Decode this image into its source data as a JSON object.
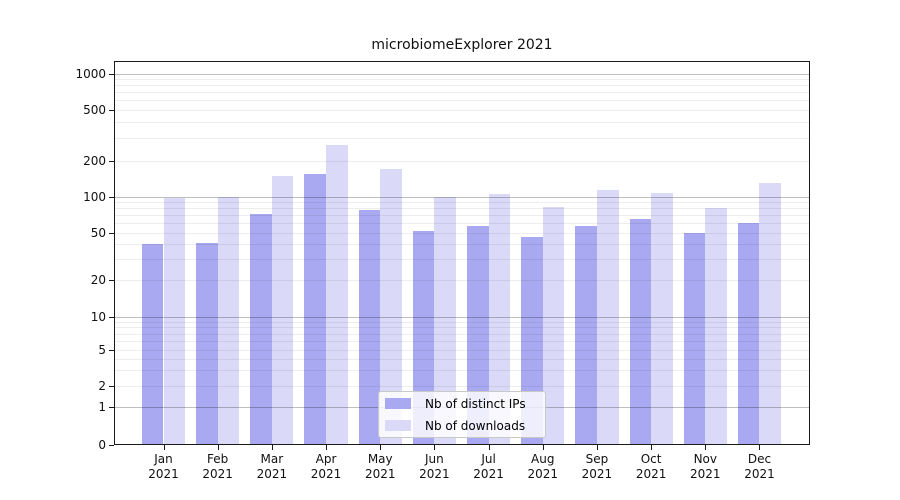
{
  "title": "microbiomeExplorer 2021",
  "colors": {
    "distinct_ips_bar": "#a9a9f2",
    "downloads_bar": "#dadaf8",
    "grid_major": "rgba(0,0,0,0.25)",
    "grid_minor": "rgba(0,0,0,0.07)",
    "axis": "#1a1a1a"
  },
  "chart_data": {
    "type": "bar",
    "title": "microbiomeExplorer 2021",
    "x_month_labels": [
      "Jan",
      "Feb",
      "Mar",
      "Apr",
      "May",
      "Jun",
      "Jul",
      "Aug",
      "Sep",
      "Oct",
      "Nov",
      "Dec"
    ],
    "x_year_label": "2021",
    "series": [
      {
        "name": "Nb of distinct IPs",
        "color": "#a9a9f2",
        "values": [
          40,
          41,
          71,
          155,
          77,
          51,
          57,
          46,
          57,
          65,
          50,
          60
        ]
      },
      {
        "name": "Nb of downloads",
        "color": "#dadaf8",
        "values": [
          97,
          99,
          148,
          265,
          170,
          99,
          105,
          82,
          113,
          108,
          80,
          129
        ]
      }
    ],
    "yscale": "symlog",
    "yticks": [
      0,
      1,
      2,
      5,
      10,
      20,
      50,
      100,
      200,
      500,
      1000
    ],
    "ytick_labels": [
      "0",
      "1",
      "2",
      "5",
      "10",
      "20",
      "50",
      "100",
      "200",
      "500",
      "1000"
    ],
    "ylim": [
      0,
      1400
    ],
    "xlabel": "",
    "ylabel": "",
    "grid": true,
    "legend": {
      "entries": [
        "Nb of distinct IPs",
        "Nb of downloads"
      ],
      "position": "lower-center-inside"
    }
  }
}
